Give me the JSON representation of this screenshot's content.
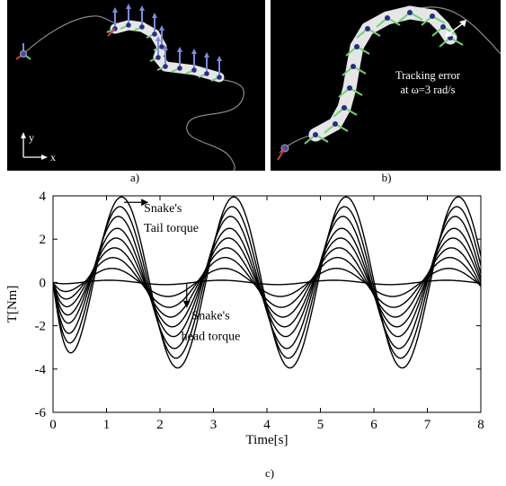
{
  "panel_a": {
    "caption": "a)",
    "axis_y_label": "y",
    "axis_x_label": "x"
  },
  "panel_b": {
    "caption": "b)",
    "annotation_line1": "Tracking error",
    "annotation_line2": "at ω=3 rad/s"
  },
  "panel_c": {
    "caption": "c)"
  },
  "colors": {
    "panel_background": "#000000",
    "snake_body": "#e6e6e6",
    "snake_joint": "#2a2a8a",
    "normal_arrow": "#6fd36f",
    "up_arrow": "#7a8ce0",
    "path_line": "#8a8a8a",
    "origin_axis_red": "#d04040",
    "curve": "#000000"
  },
  "chart_data": {
    "type": "line",
    "title": "",
    "xlabel": "Time[s]",
    "ylabel": "T[Nm]",
    "xlim": [
      0,
      8
    ],
    "ylim": [
      -6,
      4
    ],
    "xticks": [
      0,
      1,
      2,
      3,
      4,
      5,
      6,
      7,
      8
    ],
    "yticks": [
      -6,
      -4,
      -2,
      0,
      2,
      4
    ],
    "period_s": 2.1,
    "series_amplitudes": [
      0.1,
      0.65,
      1.15,
      1.6,
      2.05,
      2.5,
      3.05,
      3.5,
      3.95
    ],
    "series_peak_times_s": [
      1.05,
      1.1,
      1.12,
      1.15,
      1.18,
      1.2,
      1.22,
      1.25,
      1.28
    ],
    "annotations": [
      {
        "line1": "Snake's",
        "line2": "Tail torque",
        "arrow_to": [
          1.3,
          3.95
        ]
      },
      {
        "line1": "Snake's",
        "line2": "head torque",
        "arrow_to": [
          2.5,
          -0.2
        ]
      }
    ],
    "grid": false,
    "legend": "none"
  }
}
